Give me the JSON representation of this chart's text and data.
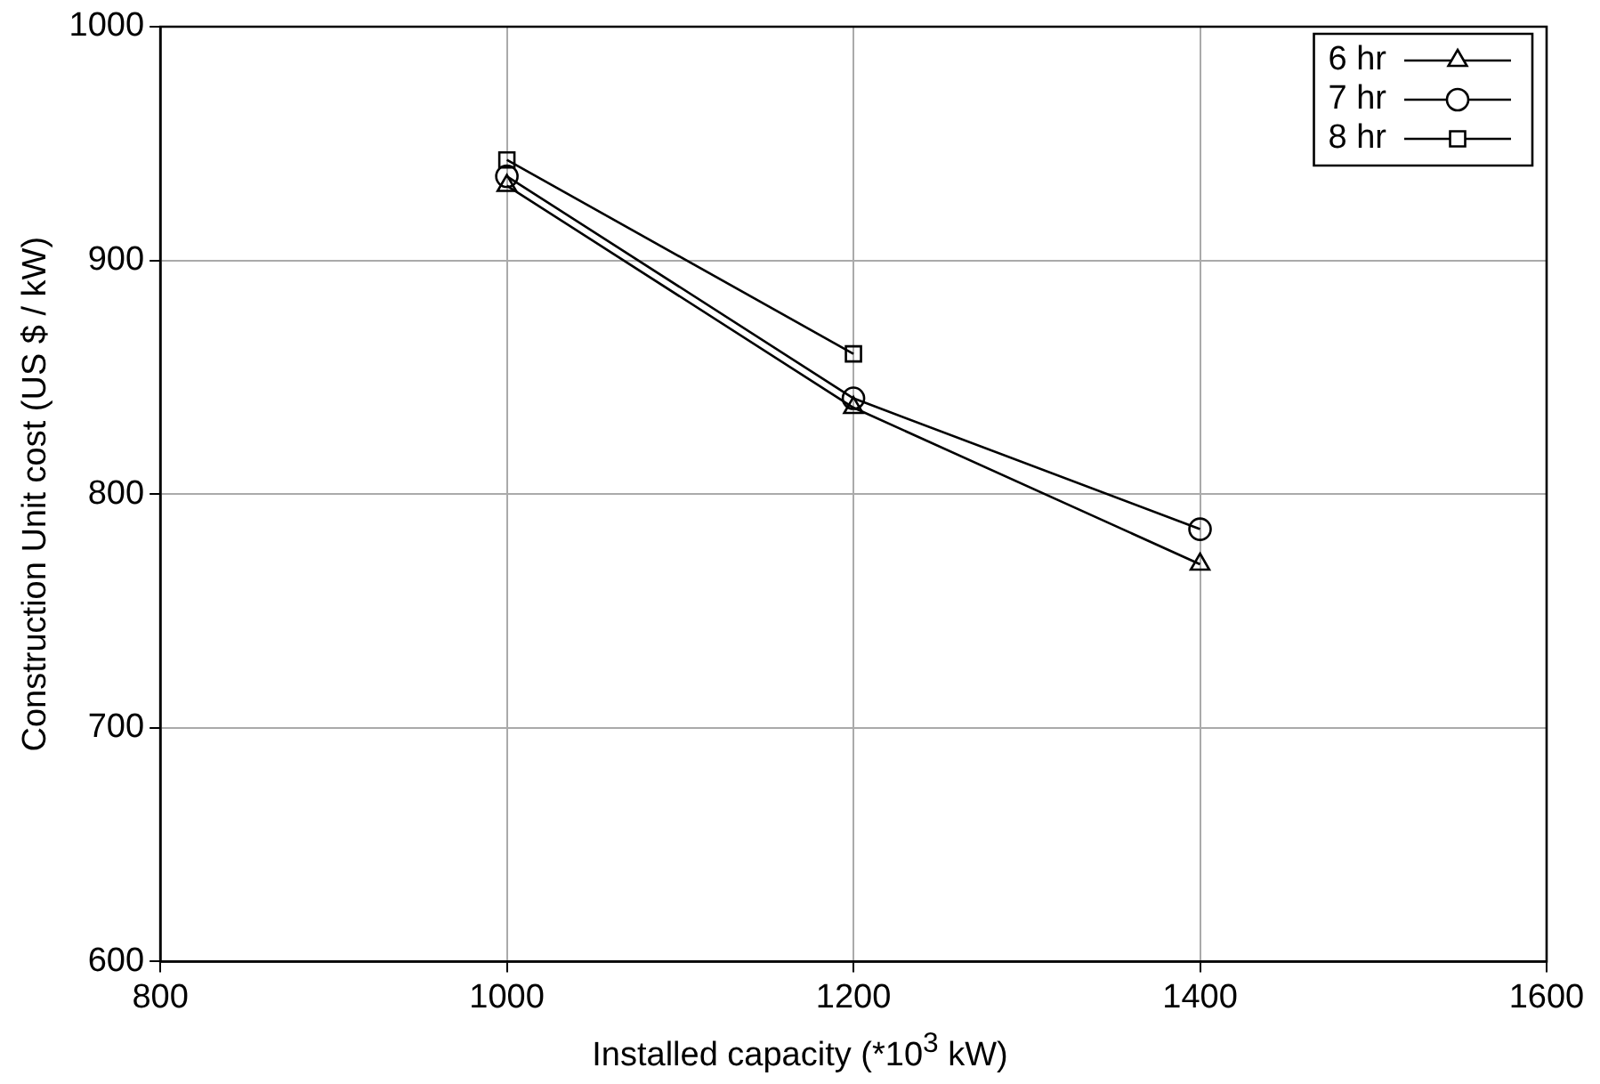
{
  "chart_data": {
    "type": "line",
    "xlabel": "Installed capacity (*10$^{3}$ kW)",
    "ylabel": "Construction Unit cost (US $ / kW)",
    "xlim": [
      800,
      1600
    ],
    "xticks": [
      800,
      1000,
      1200,
      1400,
      1600
    ],
    "ylim": [
      600,
      1000
    ],
    "yticks": [
      600,
      700,
      800,
      900,
      1000
    ],
    "grid": true,
    "legend": "top right",
    "line_style": "solid",
    "series": [
      {
        "name": "6 hr",
        "color": "#000000",
        "marker": "triangle",
        "x": [
          1000,
          1200,
          1400
        ],
        "values": [
          932,
          837,
          770
        ]
      },
      {
        "name": "7 hr",
        "color": "#000000",
        "marker": "circle",
        "x": [
          1000,
          1200,
          1400
        ],
        "values": [
          936,
          841,
          785
        ]
      },
      {
        "name": "8 hr",
        "color": "#000000",
        "marker": "square",
        "x": [
          1000,
          1200
        ],
        "values": [
          943,
          860
        ]
      }
    ]
  }
}
